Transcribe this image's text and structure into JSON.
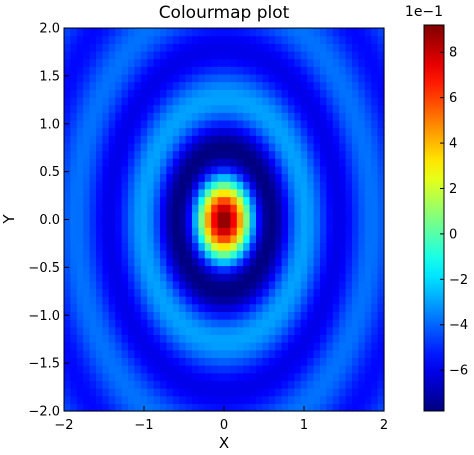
{
  "chart_data": {
    "type": "heatmap",
    "title": "Colourmap plot",
    "xlabel": "X",
    "ylabel": "Y",
    "xlim": [
      -2,
      2
    ],
    "ylim": [
      -2,
      2
    ],
    "x_ticks": [
      -2,
      -1,
      0,
      1,
      2
    ],
    "x_tick_labels": [
      "−2",
      "−1",
      "0",
      "1",
      "2"
    ],
    "y_ticks": [
      -2.0,
      -1.5,
      -1.0,
      -0.5,
      0.0,
      0.5,
      1.0,
      1.5,
      2.0
    ],
    "y_tick_labels": [
      "−2.0",
      "−1.5",
      "−1.0",
      "−0.5",
      "0.0",
      "0.5",
      "1.0",
      "1.5",
      "2.0"
    ],
    "grid": false,
    "colormap": "jet",
    "pattern": "concentric elliptical rings, value = sin(5r)/r style decay; peak at center",
    "value_min": -0.78,
    "value_max": 0.92,
    "grid_resolution": 50,
    "colorbar": {
      "offset_label": "1e−1",
      "ticks": [
        -6,
        -4,
        -2,
        0,
        2,
        4,
        6,
        8
      ],
      "tick_labels": [
        "−6",
        "−4",
        "−2",
        "0",
        "2",
        "4",
        "6",
        "8"
      ],
      "min": -7.8,
      "max": 9.2
    }
  }
}
